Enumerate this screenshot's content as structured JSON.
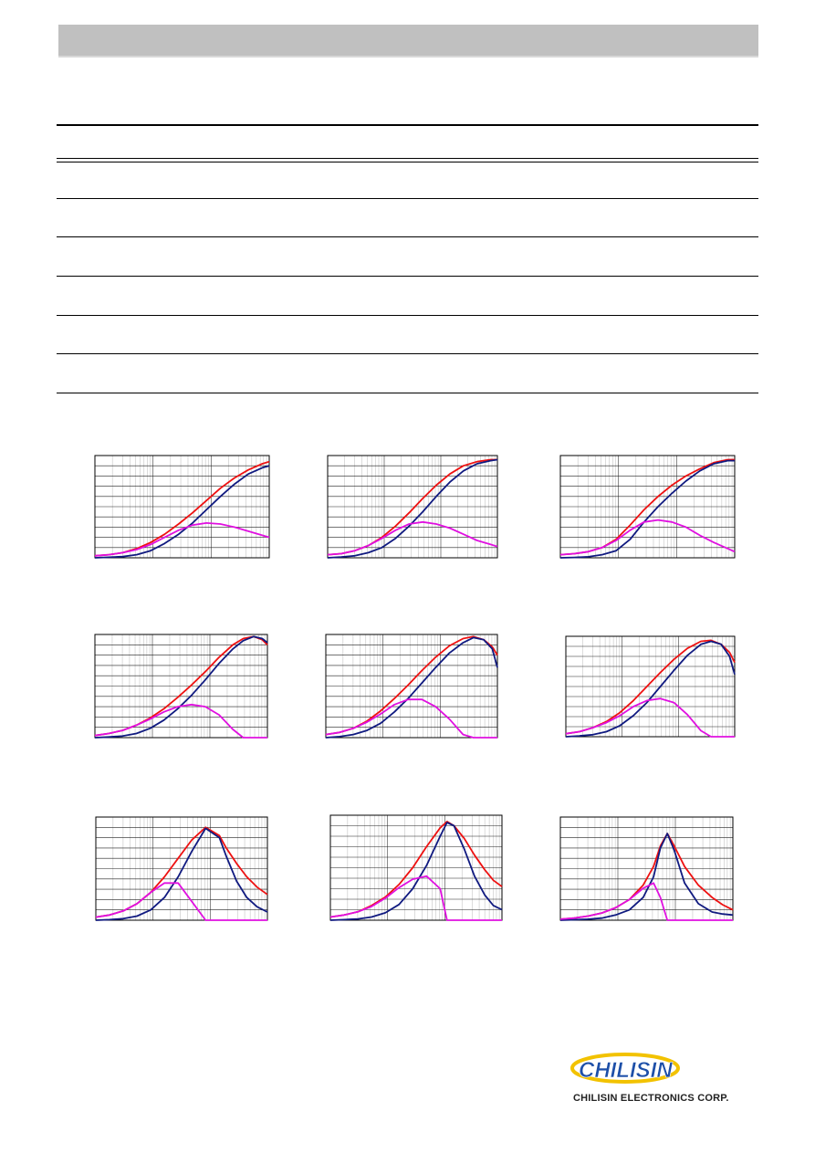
{
  "company": {
    "logo_mark": "CHILISIN",
    "name": "CHILISIN ELECTRONICS CORP."
  },
  "colors": {
    "impedance": "#ee1111",
    "resistance": "#101a80",
    "reactance": "#e010e0",
    "grid": "#000000",
    "header_bar": "#c0c0c0",
    "logo_blue": "#1d4fa8",
    "logo_yellow": "#f2c200"
  },
  "chart_data": [
    {
      "type": "line",
      "xscale": "log",
      "xlim": [
        0,
        1
      ],
      "ylim": [
        0,
        1
      ],
      "grid": true,
      "x": [
        0.0,
        0.08,
        0.16,
        0.24,
        0.32,
        0.4,
        0.48,
        0.56,
        0.64,
        0.72,
        0.8,
        0.88,
        0.96,
        1.0
      ],
      "series": [
        {
          "key": "impedance",
          "values": [
            0.02,
            0.03,
            0.05,
            0.09,
            0.15,
            0.23,
            0.33,
            0.44,
            0.56,
            0.68,
            0.78,
            0.86,
            0.92,
            0.94
          ]
        },
        {
          "key": "resistance",
          "values": [
            0.0,
            0.005,
            0.012,
            0.03,
            0.07,
            0.14,
            0.23,
            0.34,
            0.47,
            0.6,
            0.72,
            0.82,
            0.88,
            0.9
          ]
        },
        {
          "key": "reactance",
          "values": [
            0.02,
            0.03,
            0.05,
            0.08,
            0.13,
            0.2,
            0.27,
            0.32,
            0.34,
            0.33,
            0.3,
            0.26,
            0.22,
            0.2
          ]
        }
      ]
    },
    {
      "type": "line",
      "xscale": "log",
      "xlim": [
        0,
        1
      ],
      "ylim": [
        0,
        1
      ],
      "grid": true,
      "x": [
        0.0,
        0.08,
        0.16,
        0.24,
        0.32,
        0.4,
        0.48,
        0.56,
        0.64,
        0.72,
        0.8,
        0.88,
        0.96,
        1.0
      ],
      "series": [
        {
          "key": "impedance",
          "values": [
            0.03,
            0.04,
            0.07,
            0.12,
            0.2,
            0.31,
            0.44,
            0.58,
            0.71,
            0.82,
            0.9,
            0.94,
            0.96,
            0.96
          ]
        },
        {
          "key": "resistance",
          "values": [
            0.0,
            0.008,
            0.02,
            0.05,
            0.1,
            0.19,
            0.31,
            0.45,
            0.6,
            0.74,
            0.85,
            0.92,
            0.95,
            0.96
          ]
        },
        {
          "key": "reactance",
          "values": [
            0.03,
            0.04,
            0.07,
            0.12,
            0.19,
            0.27,
            0.33,
            0.35,
            0.33,
            0.29,
            0.23,
            0.17,
            0.13,
            0.11
          ]
        }
      ]
    },
    {
      "type": "line",
      "xscale": "log",
      "xlim": [
        0,
        1
      ],
      "ylim": [
        0,
        1
      ],
      "grid": true,
      "x": [
        0.0,
        0.08,
        0.16,
        0.24,
        0.32,
        0.4,
        0.48,
        0.56,
        0.64,
        0.72,
        0.8,
        0.88,
        0.96,
        1.0
      ],
      "series": [
        {
          "key": "impedance",
          "values": [
            0.03,
            0.04,
            0.06,
            0.1,
            0.18,
            0.32,
            0.47,
            0.6,
            0.71,
            0.8,
            0.87,
            0.93,
            0.96,
            0.96
          ]
        },
        {
          "key": "resistance",
          "values": [
            0.0,
            0.004,
            0.01,
            0.03,
            0.07,
            0.18,
            0.35,
            0.5,
            0.63,
            0.75,
            0.85,
            0.92,
            0.95,
            0.95
          ]
        },
        {
          "key": "reactance",
          "values": [
            0.03,
            0.04,
            0.06,
            0.1,
            0.17,
            0.27,
            0.35,
            0.37,
            0.35,
            0.3,
            0.22,
            0.15,
            0.09,
            0.06
          ]
        }
      ]
    },
    {
      "type": "line",
      "xscale": "log",
      "xlim": [
        0,
        1
      ],
      "ylim": [
        0,
        1
      ],
      "grid": true,
      "x": [
        0.0,
        0.08,
        0.16,
        0.24,
        0.32,
        0.4,
        0.48,
        0.56,
        0.64,
        0.72,
        0.8,
        0.86,
        0.92,
        0.97,
        1.0
      ],
      "series": [
        {
          "key": "impedance",
          "values": [
            0.02,
            0.04,
            0.07,
            0.12,
            0.19,
            0.28,
            0.39,
            0.51,
            0.64,
            0.78,
            0.9,
            0.96,
            0.98,
            0.95,
            0.9
          ]
        },
        {
          "key": "resistance",
          "values": [
            0.0,
            0.006,
            0.015,
            0.04,
            0.09,
            0.17,
            0.28,
            0.41,
            0.56,
            0.72,
            0.86,
            0.94,
            0.98,
            0.96,
            0.92
          ]
        },
        {
          "key": "reactance",
          "values": [
            0.02,
            0.04,
            0.07,
            0.12,
            0.18,
            0.25,
            0.3,
            0.32,
            0.3,
            0.22,
            0.08,
            0.0,
            0.0,
            0.0,
            0.0
          ]
        }
      ]
    },
    {
      "type": "line",
      "xscale": "log",
      "xlim": [
        0,
        1
      ],
      "ylim": [
        0,
        1
      ],
      "grid": true,
      "x": [
        0.0,
        0.08,
        0.16,
        0.24,
        0.32,
        0.4,
        0.48,
        0.56,
        0.64,
        0.72,
        0.8,
        0.86,
        0.92,
        0.97,
        1.0
      ],
      "series": [
        {
          "key": "impedance",
          "values": [
            0.03,
            0.05,
            0.09,
            0.16,
            0.26,
            0.38,
            0.51,
            0.65,
            0.78,
            0.89,
            0.96,
            0.98,
            0.95,
            0.88,
            0.8
          ]
        },
        {
          "key": "resistance",
          "values": [
            0.0,
            0.01,
            0.03,
            0.07,
            0.14,
            0.25,
            0.38,
            0.53,
            0.68,
            0.82,
            0.92,
            0.97,
            0.95,
            0.86,
            0.68
          ]
        },
        {
          "key": "reactance",
          "values": [
            0.03,
            0.05,
            0.09,
            0.15,
            0.23,
            0.32,
            0.37,
            0.37,
            0.3,
            0.18,
            0.03,
            0.0,
            0.0,
            0.0,
            0.0
          ]
        }
      ]
    },
    {
      "type": "line",
      "xscale": "log",
      "xlim": [
        0,
        1
      ],
      "ylim": [
        0,
        1
      ],
      "grid": true,
      "x": [
        0.0,
        0.08,
        0.16,
        0.24,
        0.32,
        0.4,
        0.48,
        0.56,
        0.64,
        0.72,
        0.8,
        0.86,
        0.92,
        0.97,
        1.0
      ],
      "series": [
        {
          "key": "impedance",
          "values": [
            0.03,
            0.05,
            0.09,
            0.15,
            0.24,
            0.36,
            0.5,
            0.64,
            0.77,
            0.88,
            0.95,
            0.96,
            0.92,
            0.84,
            0.74
          ]
        },
        {
          "key": "resistance",
          "values": [
            0.0,
            0.008,
            0.02,
            0.05,
            0.11,
            0.21,
            0.34,
            0.5,
            0.66,
            0.81,
            0.92,
            0.95,
            0.92,
            0.8,
            0.62
          ]
        },
        {
          "key": "reactance",
          "values": [
            0.03,
            0.05,
            0.09,
            0.14,
            0.21,
            0.3,
            0.36,
            0.38,
            0.34,
            0.22,
            0.06,
            0.0,
            0.0,
            0.0,
            0.0
          ]
        }
      ]
    },
    {
      "type": "line",
      "xscale": "log",
      "xlim": [
        0,
        1
      ],
      "ylim": [
        0,
        1
      ],
      "grid": true,
      "x": [
        0.0,
        0.08,
        0.16,
        0.24,
        0.32,
        0.4,
        0.48,
        0.56,
        0.64,
        0.72,
        0.76,
        0.82,
        0.88,
        0.94,
        1.0
      ],
      "series": [
        {
          "key": "impedance",
          "values": [
            0.03,
            0.05,
            0.09,
            0.16,
            0.27,
            0.42,
            0.6,
            0.78,
            0.9,
            0.82,
            0.7,
            0.55,
            0.42,
            0.32,
            0.25
          ]
        },
        {
          "key": "resistance",
          "values": [
            0.0,
            0.005,
            0.015,
            0.04,
            0.1,
            0.22,
            0.42,
            0.67,
            0.89,
            0.8,
            0.62,
            0.38,
            0.22,
            0.13,
            0.08
          ]
        },
        {
          "key": "reactance",
          "values": [
            0.03,
            0.05,
            0.09,
            0.16,
            0.27,
            0.36,
            0.36,
            0.18,
            0.0,
            0.0,
            0.0,
            0.0,
            0.0,
            0.0,
            0.0
          ]
        }
      ]
    },
    {
      "type": "line",
      "xscale": "log",
      "xlim": [
        0,
        1
      ],
      "ylim": [
        0,
        1
      ],
      "grid": true,
      "x": [
        0.0,
        0.08,
        0.16,
        0.24,
        0.32,
        0.4,
        0.48,
        0.56,
        0.64,
        0.68,
        0.72,
        0.78,
        0.84,
        0.9,
        0.95,
        1.0
      ],
      "series": [
        {
          "key": "impedance",
          "values": [
            0.03,
            0.05,
            0.08,
            0.14,
            0.22,
            0.34,
            0.5,
            0.7,
            0.88,
            0.94,
            0.9,
            0.78,
            0.62,
            0.48,
            0.38,
            0.32
          ]
        },
        {
          "key": "resistance",
          "values": [
            0.0,
            0.005,
            0.012,
            0.03,
            0.07,
            0.15,
            0.3,
            0.52,
            0.8,
            0.93,
            0.9,
            0.68,
            0.42,
            0.24,
            0.14,
            0.1
          ]
        },
        {
          "key": "reactance",
          "values": [
            0.03,
            0.05,
            0.08,
            0.13,
            0.21,
            0.31,
            0.39,
            0.42,
            0.3,
            0.0,
            0.0,
            0.0,
            0.0,
            0.0,
            0.0,
            0.0
          ]
        }
      ]
    },
    {
      "type": "line",
      "xscale": "log",
      "xlim": [
        0,
        1
      ],
      "ylim": [
        0,
        1
      ],
      "grid": true,
      "x": [
        0.0,
        0.08,
        0.16,
        0.24,
        0.32,
        0.4,
        0.48,
        0.54,
        0.58,
        0.62,
        0.66,
        0.72,
        0.8,
        0.88,
        0.94,
        1.0
      ],
      "series": [
        {
          "key": "impedance",
          "values": [
            0.01,
            0.02,
            0.04,
            0.07,
            0.12,
            0.2,
            0.34,
            0.52,
            0.72,
            0.84,
            0.72,
            0.52,
            0.34,
            0.22,
            0.15,
            0.1
          ]
        },
        {
          "key": "resistance",
          "values": [
            0.0,
            0.004,
            0.01,
            0.02,
            0.05,
            0.1,
            0.22,
            0.42,
            0.7,
            0.84,
            0.68,
            0.36,
            0.16,
            0.08,
            0.06,
            0.05
          ]
        },
        {
          "key": "reactance",
          "values": [
            0.01,
            0.02,
            0.04,
            0.07,
            0.12,
            0.2,
            0.31,
            0.36,
            0.22,
            0.0,
            0.0,
            0.0,
            0.0,
            0.0,
            0.0,
            0.0
          ]
        }
      ]
    }
  ]
}
